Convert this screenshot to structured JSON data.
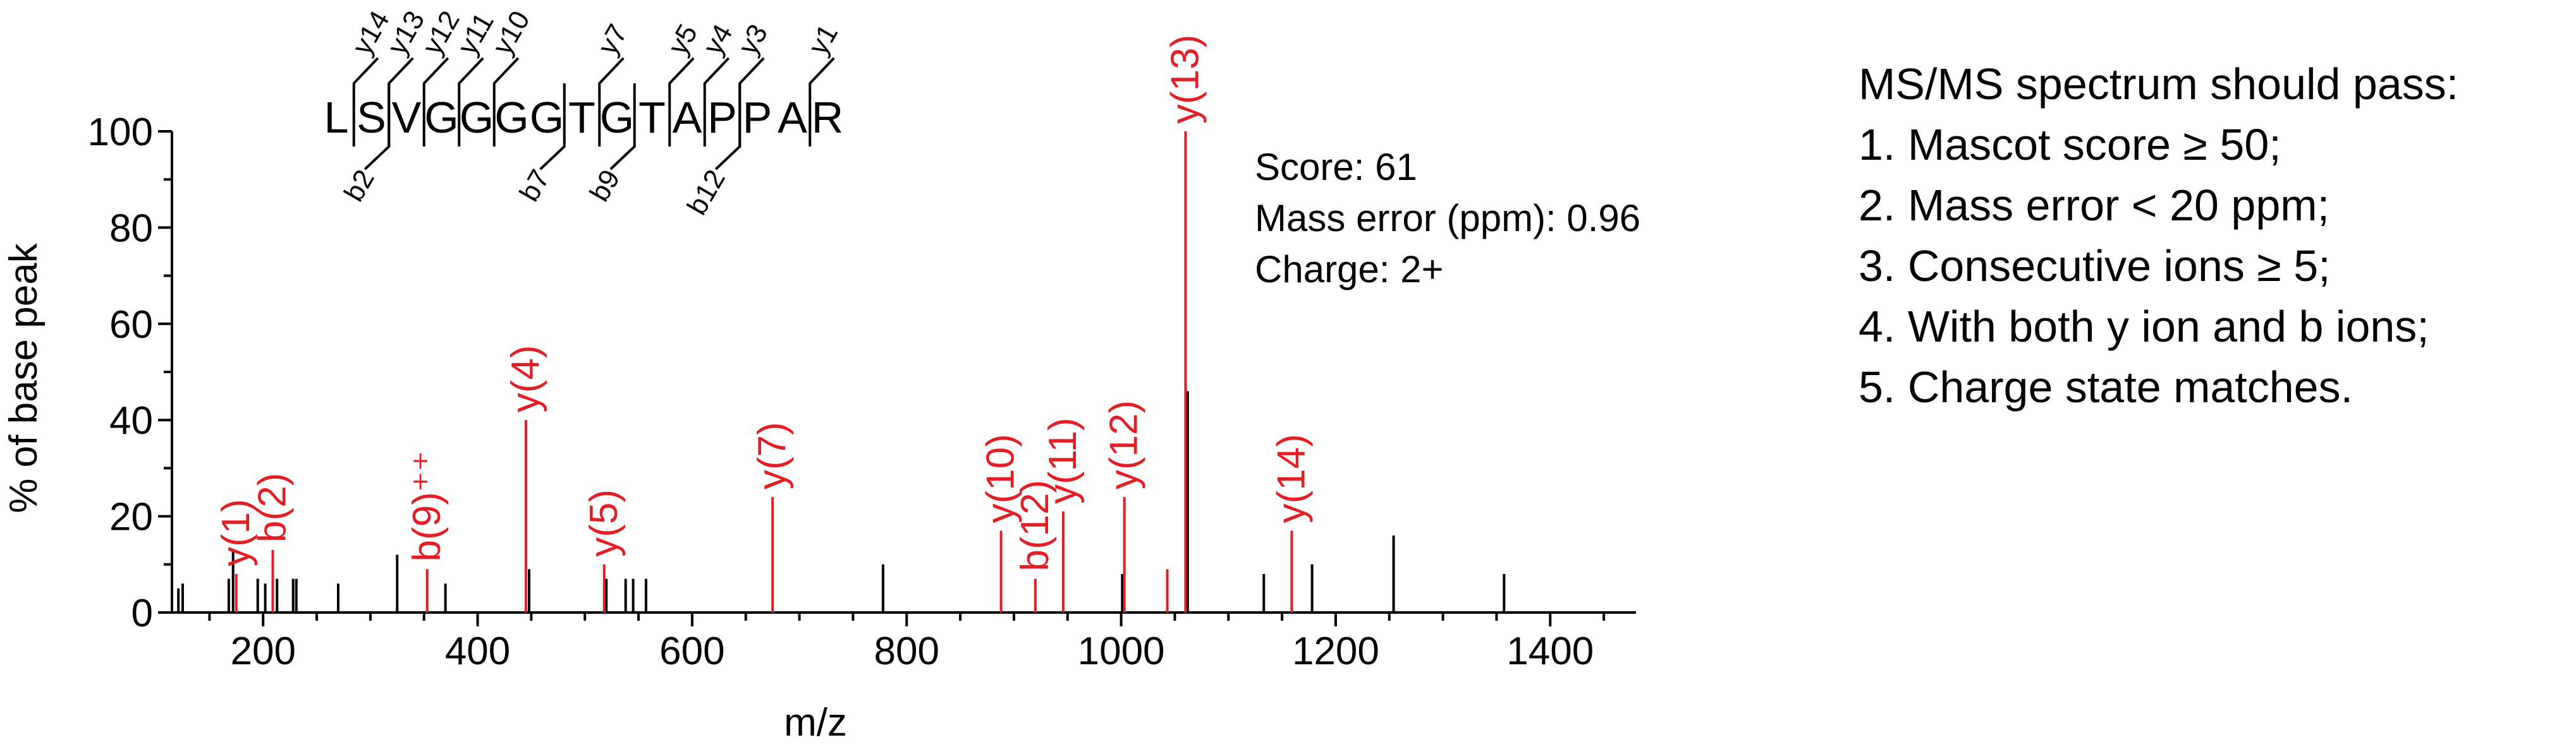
{
  "chart_data": {
    "type": "bar",
    "xlabel": "m/z",
    "ylabel": "% of base peak",
    "xlim": [
      115,
      1480
    ],
    "ylim": [
      0,
      100
    ],
    "x_ticks": [
      200,
      400,
      600,
      800,
      1000,
      1200,
      1400
    ],
    "y_ticks": [
      0,
      20,
      40,
      60,
      80,
      100
    ],
    "colors": {
      "matched": "#e31e24",
      "unmatched": "#000000"
    },
    "peaks_unmatched": [
      {
        "x": 121,
        "y": 5
      },
      {
        "x": 125,
        "y": 6
      },
      {
        "x": 168,
        "y": 7
      },
      {
        "x": 172,
        "y": 13
      },
      {
        "x": 195,
        "y": 7
      },
      {
        "x": 202,
        "y": 6
      },
      {
        "x": 213,
        "y": 7
      },
      {
        "x": 228,
        "y": 7
      },
      {
        "x": 231,
        "y": 7
      },
      {
        "x": 270,
        "y": 6
      },
      {
        "x": 325,
        "y": 12
      },
      {
        "x": 370,
        "y": 6
      },
      {
        "x": 448,
        "y": 9
      },
      {
        "x": 520,
        "y": 7
      },
      {
        "x": 538,
        "y": 7
      },
      {
        "x": 545,
        "y": 7
      },
      {
        "x": 557,
        "y": 7
      },
      {
        "x": 778,
        "y": 10
      },
      {
        "x": 1001,
        "y": 8
      },
      {
        "x": 1062,
        "y": 46
      },
      {
        "x": 1133,
        "y": 8
      },
      {
        "x": 1178,
        "y": 10
      },
      {
        "x": 1254,
        "y": 16
      },
      {
        "x": 1357,
        "y": 8
      }
    ],
    "peaks_matched": [
      {
        "x": 175,
        "y": 8,
        "label": "y(1)"
      },
      {
        "x": 209,
        "y": 13,
        "label": "b(2)"
      },
      {
        "x": 353,
        "y": 9,
        "label": "b(9)⁺⁺"
      },
      {
        "x": 445,
        "y": 40,
        "label": "y(4)"
      },
      {
        "x": 518,
        "y": 10,
        "label": "y(5)"
      },
      {
        "x": 675,
        "y": 24,
        "label": "y(7)"
      },
      {
        "x": 888,
        "y": 17,
        "label": "y(10)"
      },
      {
        "x": 920,
        "y": 7,
        "label": "b(12)"
      },
      {
        "x": 946,
        "y": 21,
        "label": "y(11)"
      },
      {
        "x": 1003,
        "y": 24,
        "label": "y(12)"
      },
      {
        "x": 1043,
        "y": 9,
        "label": ""
      },
      {
        "x": 1060,
        "y": 100,
        "label": "y(13)"
      },
      {
        "x": 1159,
        "y": 17,
        "label": "y(14)"
      }
    ],
    "peptide": {
      "residues": [
        "L",
        "S",
        "V",
        "G",
        "G",
        "G",
        "G",
        "T",
        "G",
        "T",
        "A",
        "P",
        "P",
        "A",
        "R"
      ],
      "y_ions": [
        {
          "label": "y14",
          "after": 1
        },
        {
          "label": "y13",
          "after": 2
        },
        {
          "label": "y12",
          "after": 3
        },
        {
          "label": "y11",
          "after": 4
        },
        {
          "label": "y10",
          "after": 5
        },
        {
          "label": "y7",
          "after": 8
        },
        {
          "label": "y5",
          "after": 10
        },
        {
          "label": "y4",
          "after": 11
        },
        {
          "label": "y3",
          "after": 12
        },
        {
          "label": "y1",
          "after": 14
        }
      ],
      "b_ions": [
        {
          "label": "b2",
          "after": 2
        },
        {
          "label": "b7",
          "after": 7
        },
        {
          "label": "b9",
          "after": 9
        },
        {
          "label": "b12",
          "after": 12
        }
      ]
    },
    "info": [
      "Score: 61",
      "Mass error (ppm): 0.96",
      "Charge: 2+"
    ]
  },
  "criteria": {
    "title": "MS/MS spectrum should pass:",
    "items": [
      "1. Mascot score ≥ 50;",
      "2. Mass error < 20 ppm;",
      "3. Consecutive ions ≥ 5;",
      "4. With both y ion and b ions;",
      "5. Charge state matches."
    ]
  }
}
